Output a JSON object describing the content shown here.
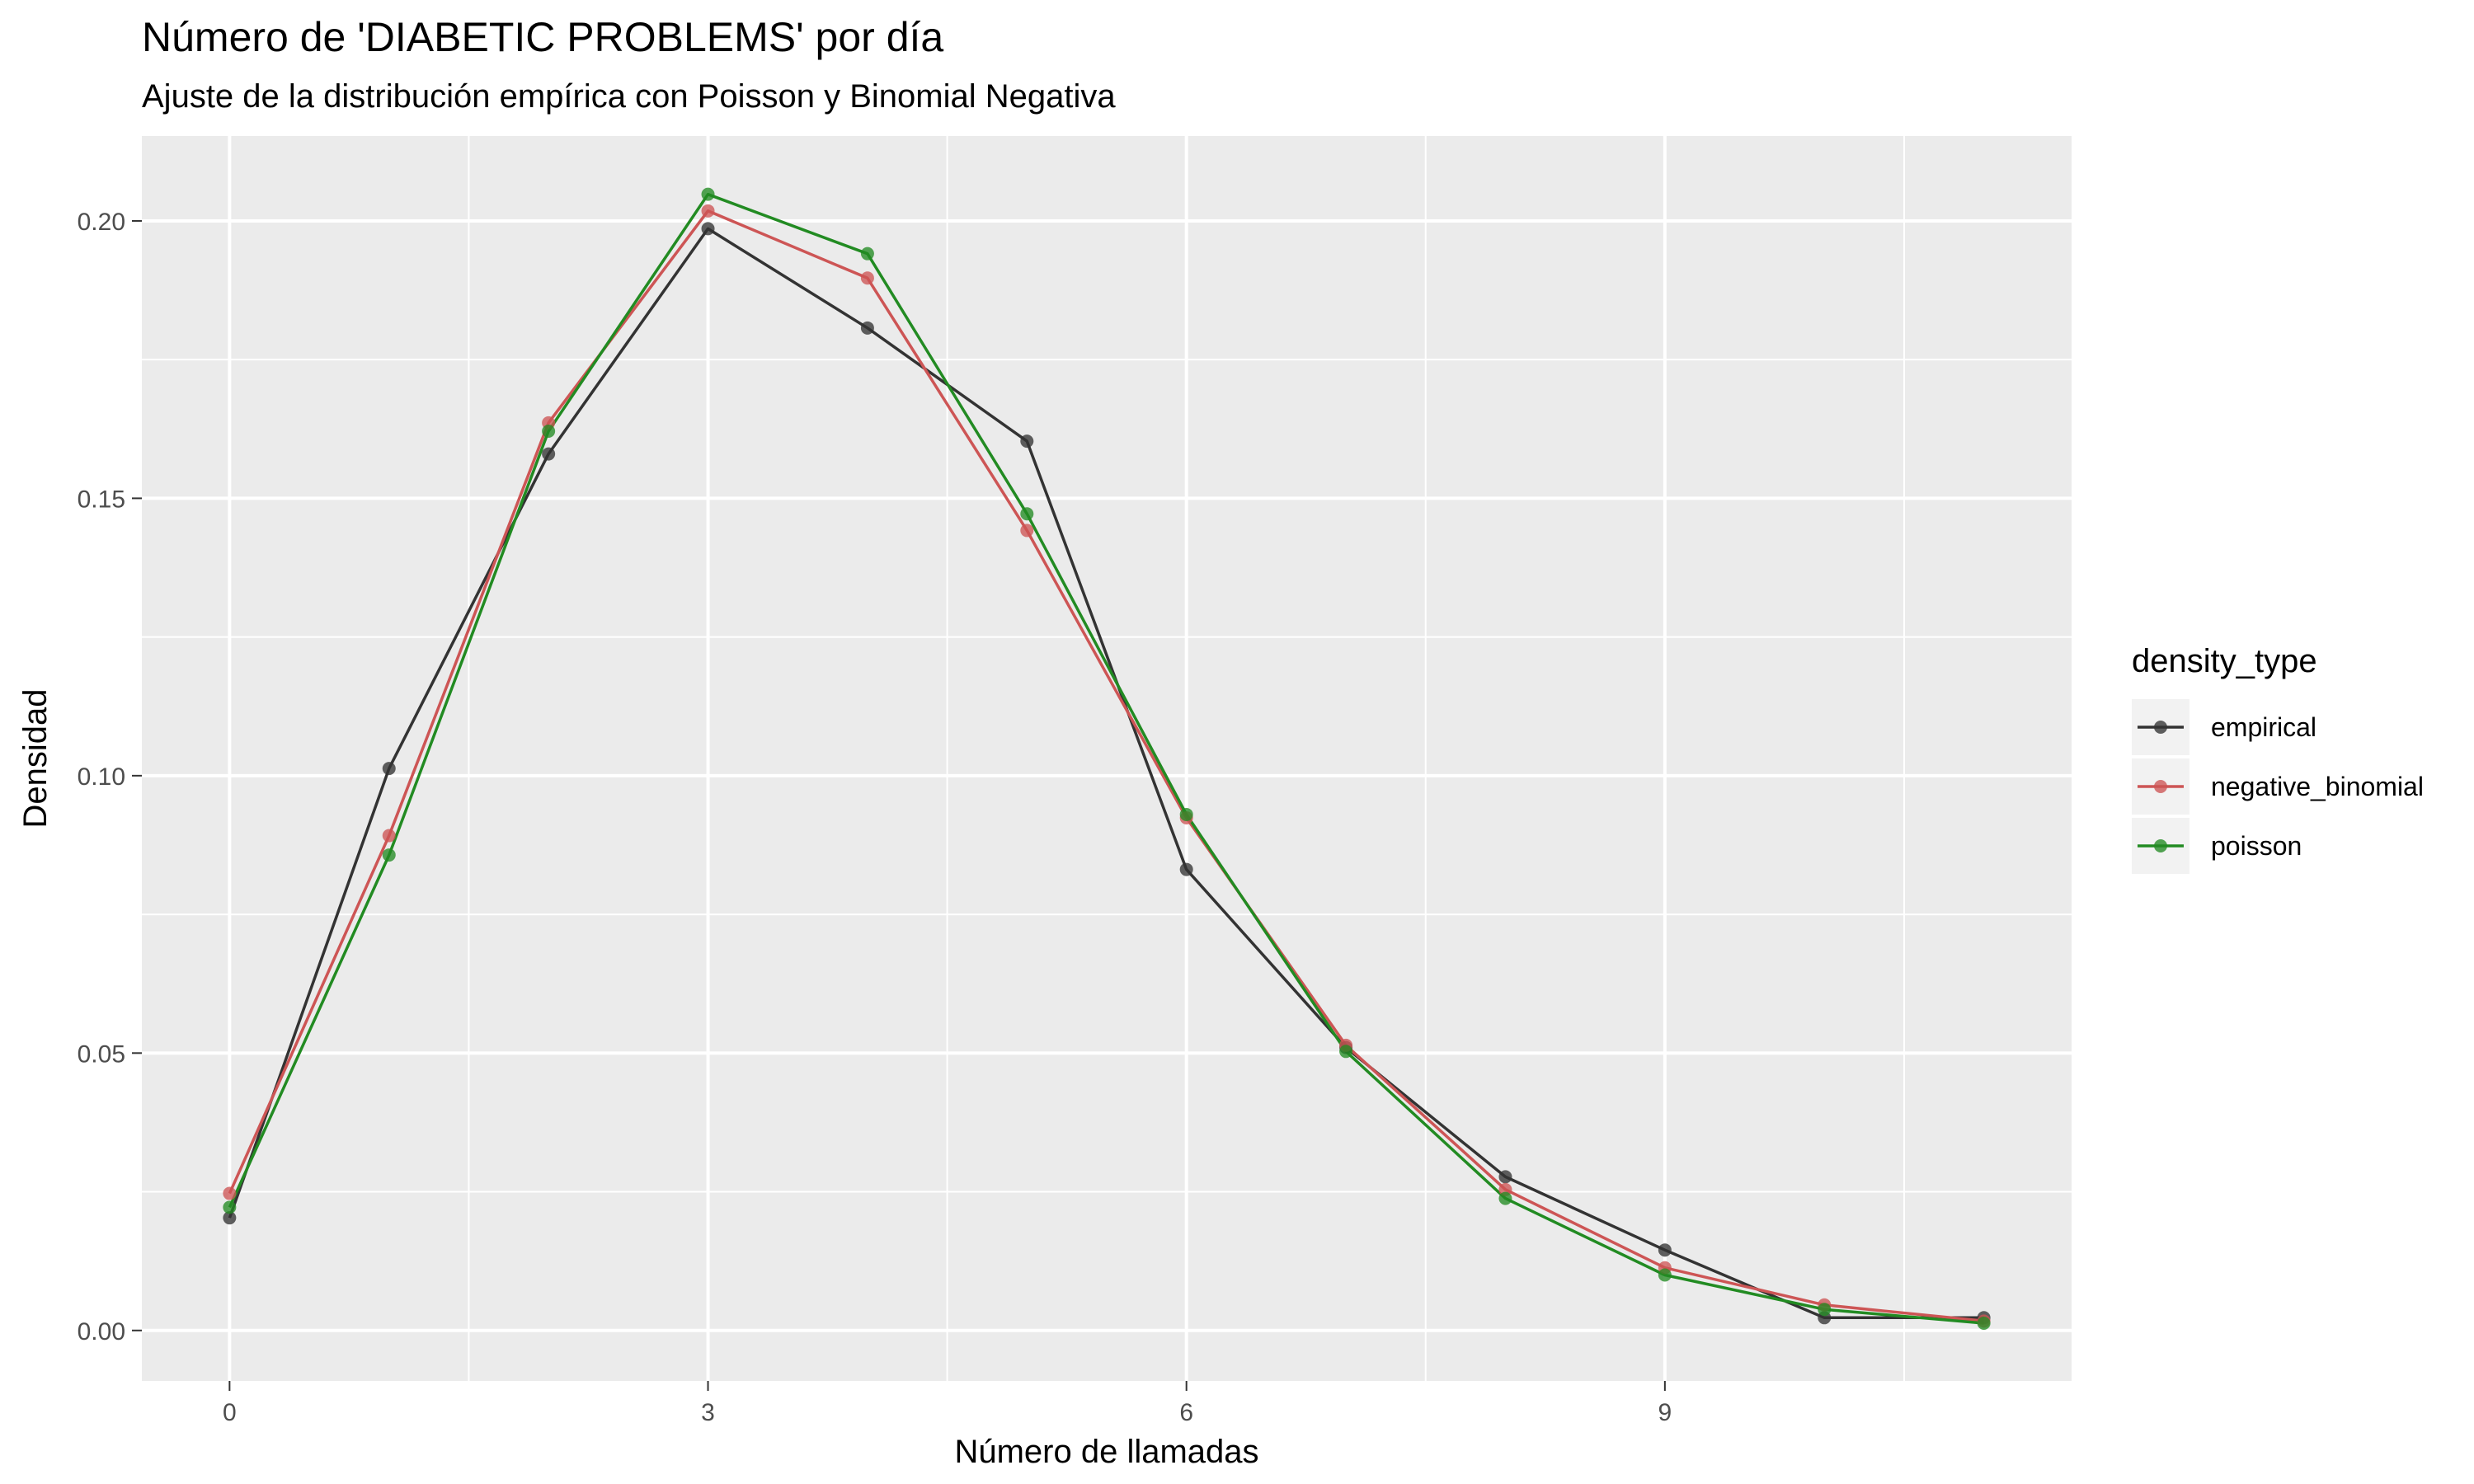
{
  "chart_data": {
    "type": "line",
    "title": "Número de 'DIABETIC PROBLEMS' por día",
    "subtitle": "Ajuste de la distribución empírica con Poisson y Binomial Negativa",
    "xlabel": "Número de llamadas",
    "ylabel": "Densidad",
    "x": [
      0,
      1,
      2,
      3,
      4,
      5,
      6,
      7,
      8,
      9,
      10,
      11
    ],
    "xlim": [
      -0.55,
      11.55
    ],
    "ylim": [
      -0.0091,
      0.2153
    ],
    "x_ticks": [
      0,
      3,
      6,
      9
    ],
    "x_tick_labels": [
      "0",
      "3",
      "6",
      "9"
    ],
    "y_ticks": [
      0.0,
      0.05,
      0.1,
      0.15,
      0.2
    ],
    "y_tick_labels": [
      "0.00",
      "0.05",
      "0.10",
      "0.15",
      "0.20"
    ],
    "grid": true,
    "legend": {
      "title": "density_type",
      "position": "right"
    },
    "series": [
      {
        "name": "empirical",
        "color": "#333333",
        "values": [
          0.0203,
          0.1013,
          0.158,
          0.1986,
          0.1807,
          0.1603,
          0.0831,
          0.051,
          0.0277,
          0.0145,
          0.0023,
          0.0023
        ]
      },
      {
        "name": "negative_binomial",
        "color": "#CD5555",
        "values": [
          0.0247,
          0.0892,
          0.1636,
          0.2018,
          0.1897,
          0.1442,
          0.0924,
          0.0514,
          0.0254,
          0.0113,
          0.0046,
          0.0017
        ]
      },
      {
        "name": "poisson",
        "color": "#228B22",
        "values": [
          0.0222,
          0.0857,
          0.1621,
          0.2048,
          0.1941,
          0.1472,
          0.093,
          0.0503,
          0.0238,
          0.01,
          0.0038,
          0.0013
        ]
      }
    ]
  }
}
